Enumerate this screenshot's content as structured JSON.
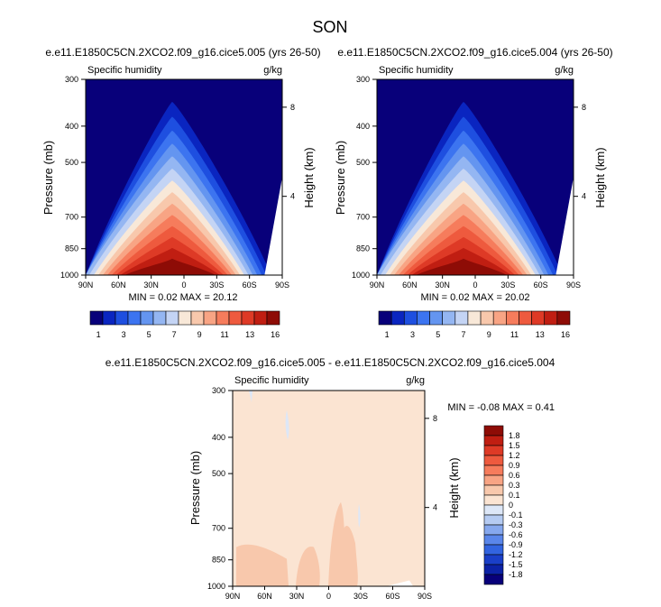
{
  "page_title": "SON",
  "panels": [
    {
      "id": "top-left",
      "subtitle": "e.e11.E1850C5CN.2XCO2.f09_g16.cice5.005 (yrs 26-50)",
      "variable_label": "Specific humidity",
      "units_label": "g/kg",
      "min_text": "MIN =  0.02  MAX = 20.12"
    },
    {
      "id": "top-right",
      "subtitle": "e.e11.E1850C5CN.2XCO2.f09_g16.cice5.004 (yrs 26-50)",
      "variable_label": "Specific humidity",
      "units_label": "g/kg",
      "min_text": "MIN =  0.02  MAX = 20.02"
    },
    {
      "id": "bottom-diff",
      "subtitle": "e.e11.E1850C5CN.2XCO2.f09_g16.cice5.005 - e.e11.E1850C5CN.2XCO2.f09_g16.cice5.004",
      "variable_label": "Specific humidity",
      "units_label": "g/kg",
      "min_text": "MIN = -0.08  MAX =   0.41"
    }
  ],
  "axes": {
    "ylabel": "Pressure (mb)",
    "ylabel_right": "Height (km)",
    "pressure_ticks": [
      "300",
      "400",
      "500",
      "700",
      "850",
      "1000"
    ],
    "height_ticks": [
      "8",
      "4"
    ],
    "lat_ticks": [
      "90N",
      "60N",
      "30N",
      "0",
      "30S",
      "60S",
      "90S"
    ]
  },
  "colorbars": {
    "top": {
      "labels": [
        "1",
        "3",
        "5",
        "7",
        "9",
        "11",
        "13",
        "16"
      ],
      "colors": [
        "#08007a",
        "#0a25c0",
        "#1e4fe0",
        "#3c74f0",
        "#6495f0",
        "#94b6f2",
        "#c4d4f4",
        "#f8e8d8",
        "#f8c8ac",
        "#f8a484",
        "#f67c5c",
        "#ee5a3e",
        "#de3a26",
        "#c01e12",
        "#8e0c06"
      ]
    },
    "diff": {
      "labels": [
        "1.8",
        "1.5",
        "1.2",
        "0.9",
        "0.6",
        "0.3",
        "0.1",
        "0",
        "-0.1",
        "-0.3",
        "-0.6",
        "-0.9",
        "-1.2",
        "-1.5",
        "-1.8"
      ],
      "colors": [
        "#8e0c06",
        "#c01e12",
        "#de3a26",
        "#ee5a3e",
        "#f67c5c",
        "#f8a484",
        "#f8c8ac",
        "#fbe4d2",
        "#dde7f7",
        "#b5cbf2",
        "#86a8ee",
        "#5a86ea",
        "#3264e0",
        "#1a3fc8",
        "#0c22a6",
        "#08007a"
      ]
    }
  },
  "chart_data": [
    {
      "type": "heatmap",
      "title": "e.e11.E1850C5CN.2XCO2.f09_g16.cice5.005 (yrs 26-50)",
      "variable": "Specific humidity",
      "units": "g/kg",
      "season": "SON",
      "x": [
        "90N",
        "60N",
        "30N",
        "0",
        "30S",
        "60S",
        "90S"
      ],
      "y_pressure_mb": [
        300,
        400,
        500,
        700,
        850,
        1000
      ],
      "min": 0.02,
      "max": 20.12,
      "levels": [
        1,
        2,
        3,
        4,
        5,
        6,
        7,
        8,
        9,
        10,
        11,
        12,
        13,
        14,
        16
      ]
    },
    {
      "type": "heatmap",
      "title": "e.e11.E1850C5CN.2XCO2.f09_g16.cice5.004 (yrs 26-50)",
      "variable": "Specific humidity",
      "units": "g/kg",
      "season": "SON",
      "x": [
        "90N",
        "60N",
        "30N",
        "0",
        "30S",
        "60S",
        "90S"
      ],
      "y_pressure_mb": [
        300,
        400,
        500,
        700,
        850,
        1000
      ],
      "min": 0.02,
      "max": 20.02,
      "levels": [
        1,
        2,
        3,
        4,
        5,
        6,
        7,
        8,
        9,
        10,
        11,
        12,
        13,
        14,
        16
      ]
    },
    {
      "type": "heatmap",
      "title": "e.e11.E1850C5CN.2XCO2.f09_g16.cice5.005 - e.e11.E1850C5CN.2XCO2.f09_g16.cice5.004",
      "variable": "Specific humidity",
      "units": "g/kg",
      "season": "SON",
      "x": [
        "90N",
        "60N",
        "30N",
        "0",
        "30S",
        "60S",
        "90S"
      ],
      "y_pressure_mb": [
        300,
        400,
        500,
        700,
        850,
        1000
      ],
      "min": -0.08,
      "max": 0.41,
      "levels": [
        -1.8,
        -1.5,
        -1.2,
        -0.9,
        -0.6,
        -0.3,
        -0.1,
        0,
        0.1,
        0.3,
        0.6,
        0.9,
        1.2,
        1.5,
        1.8
      ]
    }
  ]
}
